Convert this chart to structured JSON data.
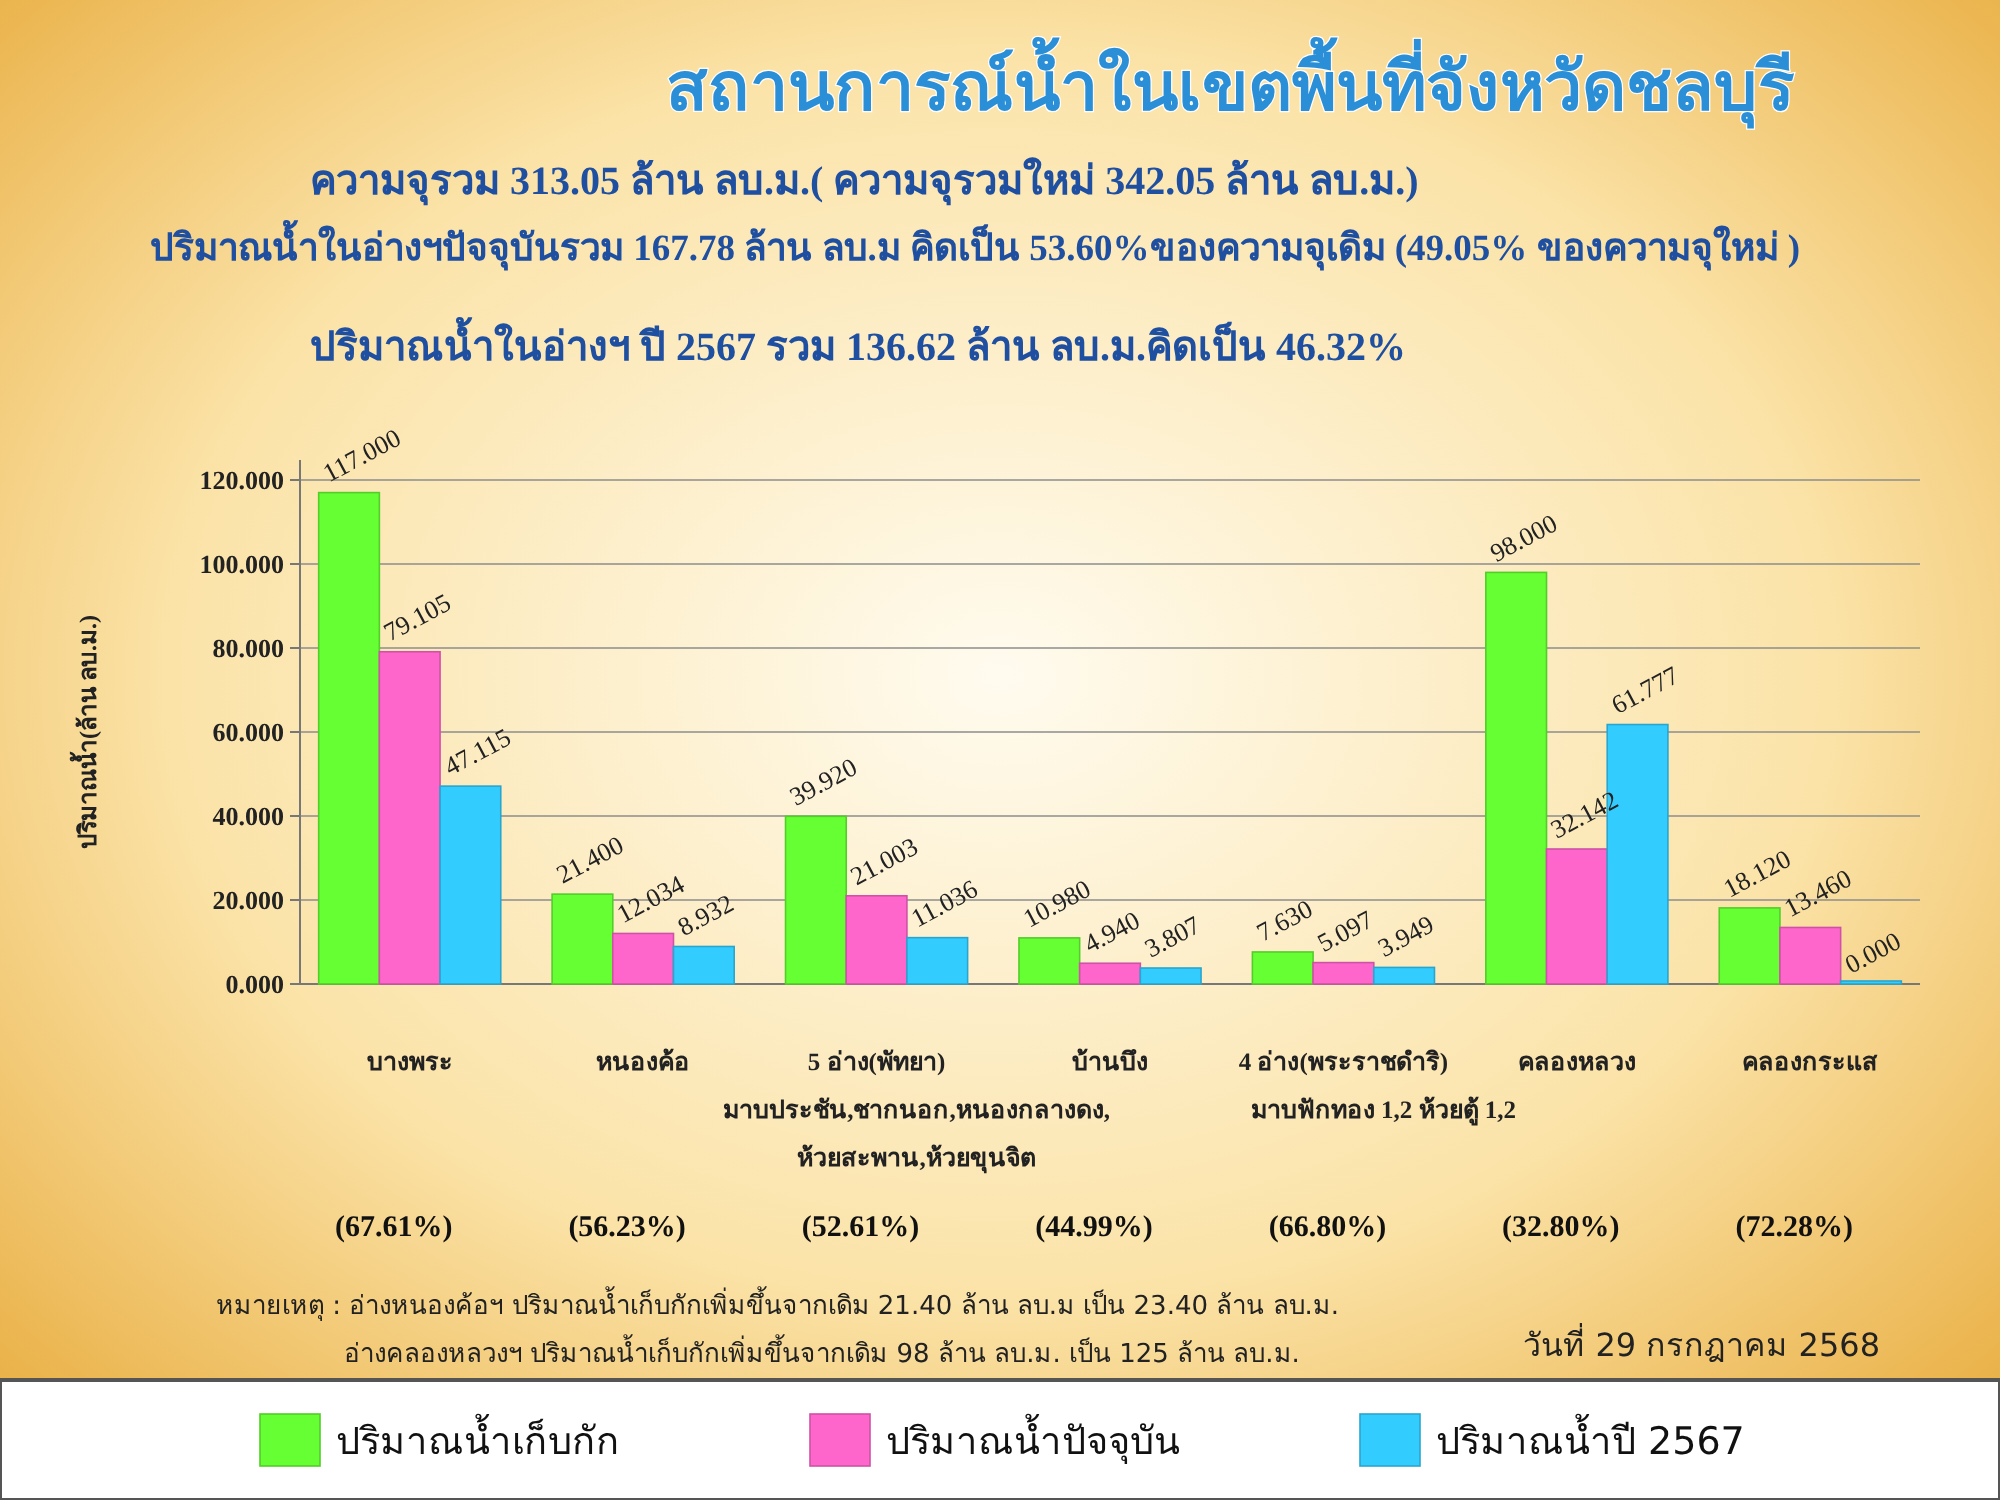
{
  "chart_data": {
    "type": "bar",
    "title": "สถานการณ์น้ำในเขตพื้นที่จังหวัดชลบุรี",
    "subtitle": "ความจุรวม  313.05 ล้าน ลบ.ม.( ความจุรวมใหม่ 342.05 ล้าน ลบ.ม.)\nปริมาณน้ำในอ่างฯปัจจุบันรวม 167.78 ล้าน ลบ.ม คิดเป็น 53.60%ของความจุเดิม (49.05% ของความจุใหม่ )\nปริมาณน้ำในอ่างฯ ปี 2567 รวม 136.62 ล้าน ลบ.ม.คิดเป็น 46.32%",
    "ylabel": "ปริมาณน้ำ(ล้าน ลบ.ม.)",
    "categories": [
      "บางพระ",
      "หนองค้อ",
      "5 อ่าง(พัทยา)\nมาบประชัน,ชากนอก,หนองกลางดง,\nห้วยสะพาน,ห้วยขุนจิต",
      "บ้านบึง",
      "4 อ่าง(พระราชดำริ)\nมาบฟักทอง 1,2 ห้วยตู้ 1,2",
      "คลองหลวง",
      "คลองกระแส"
    ],
    "series": [
      {
        "name": "ปริมาณน้ำเก็บกัก",
        "color": "#66ff33",
        "values": [
          117,
          21.4,
          39.92,
          10.98,
          7.63,
          98,
          18.12
        ],
        "value_labels": [
          "117.000",
          "21.400",
          "39.920",
          "10.980",
          "7.630",
          "98.000",
          "18.120"
        ]
      },
      {
        "name": "ปริมาณน้ำปัจจุบัน",
        "color": "#ff66cc",
        "values": [
          79.105,
          12.034,
          21.003,
          4.94,
          5.097,
          32.142,
          13.46
        ],
        "value_labels": [
          "79.105",
          "12.034",
          "21.003",
          "4.940",
          "5.097",
          "32.142",
          "13.460"
        ]
      },
      {
        "name": "ปริมาณน้ำปี 2567",
        "color": "#33ccff",
        "values": [
          47.115,
          8.932,
          11.036,
          3.807,
          3.949,
          61.777,
          0
        ],
        "value_labels": [
          "47.115",
          "8.932",
          "11.036",
          "3.807",
          "3.949",
          "61.777",
          "0.000"
        ]
      }
    ],
    "ylim": [
      0,
      120
    ],
    "yticks": [
      {
        "value": 0,
        "label": "0.000"
      },
      {
        "value": 20,
        "label": "20.000"
      },
      {
        "value": 40,
        "label": "40.000"
      },
      {
        "value": 60,
        "label": "60.000"
      },
      {
        "value": 80,
        "label": "80.000"
      },
      {
        "value": 100,
        "label": "100.000"
      },
      {
        "value": 120,
        "label": "120.000"
      }
    ],
    "grid": "y",
    "legend": "bottom",
    "annotations": [
      "(67.61%)",
      "(56.23%)",
      "(52.61%)",
      "(44.99%)",
      "(66.80%)",
      "(32.80%)",
      "(72.28%)",
      "หมายเหตุ :  อ่างหนองค้อฯ ปริมาณน้ำเก็บกักเพิ่มขึ้นจากเดิม 21.40 ล้าน ลบ.ม เป็น 23.40 ล้าน ลบ.ม.",
      "อ่างคลองหลวงฯ ปริมาณน้ำเก็บกักเพิ่มขึ้นจากเดิม 98 ล้าน ลบ.ม. เป็น 125 ล้าน ลบ.ม.",
      "วันที่ 29 กรกฎาคม 2568"
    ]
  }
}
